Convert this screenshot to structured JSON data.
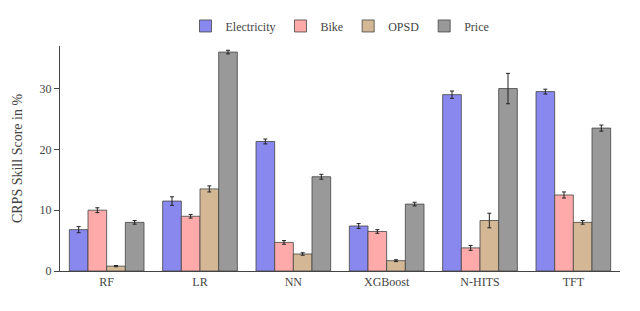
{
  "chart_data": {
    "type": "bar",
    "categories": [
      "RF",
      "LR",
      "NN",
      "XGBoost",
      "N-HITS",
      "TFT"
    ],
    "series": [
      {
        "name": "Electricity",
        "color": "#8888ee",
        "values": [
          6.8,
          11.5,
          21.3,
          7.4,
          29.0,
          29.5
        ],
        "errors": [
          0.5,
          0.7,
          0.4,
          0.4,
          0.6,
          0.4
        ]
      },
      {
        "name": "Bike",
        "color": "#ffaaaa",
        "values": [
          10.0,
          9.0,
          4.7,
          6.5,
          3.8,
          12.5
        ],
        "errors": [
          0.4,
          0.3,
          0.3,
          0.3,
          0.4,
          0.5
        ]
      },
      {
        "name": "OPSD",
        "color": "#d4b896",
        "values": [
          0.8,
          13.5,
          2.8,
          1.7,
          8.3,
          8.0
        ],
        "errors": [
          0.1,
          0.5,
          0.2,
          0.15,
          1.2,
          0.3
        ]
      },
      {
        "name": "Price",
        "color": "#999999",
        "values": [
          8.0,
          36.0,
          15.5,
          11.0,
          30.0,
          23.5
        ],
        "errors": [
          0.3,
          0.3,
          0.4,
          0.3,
          2.5,
          0.5
        ]
      }
    ],
    "ylabel": "CRPS Skill Score in %",
    "ylim": [
      0,
      37
    ],
    "yticks": [
      0,
      10,
      20,
      30
    ],
    "grid": false,
    "legend": "top"
  }
}
